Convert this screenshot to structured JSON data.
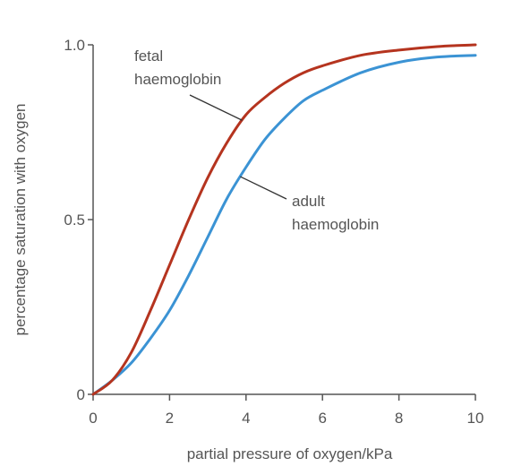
{
  "chart_data": {
    "type": "line",
    "title": "",
    "xlabel": "partial pressure of oxygen/kPa",
    "ylabel": "percentage saturation with oxygen",
    "xlim": [
      0,
      10
    ],
    "ylim": [
      0,
      1.0
    ],
    "x_ticks": [
      "0",
      "2",
      "4",
      "6",
      "8",
      "10"
    ],
    "y_ticks": [
      "0",
      "0.5",
      "1.0"
    ],
    "grid": false,
    "legend": "none",
    "series": [
      {
        "name": "fetal haemoglobin",
        "color": "#b5341f",
        "x": [
          0,
          0.5,
          1,
          1.5,
          2,
          2.5,
          3,
          3.5,
          4,
          4.5,
          5,
          5.5,
          6,
          7,
          8,
          9,
          10
        ],
        "y": [
          0,
          0.04,
          0.12,
          0.24,
          0.37,
          0.5,
          0.62,
          0.72,
          0.8,
          0.85,
          0.89,
          0.92,
          0.94,
          0.97,
          0.985,
          0.995,
          1.0
        ]
      },
      {
        "name": "adult haemoglobin",
        "color": "#3b93d4",
        "x": [
          0,
          0.5,
          1,
          1.5,
          2,
          2.5,
          3,
          3.5,
          4,
          4.5,
          5,
          5.5,
          6,
          7,
          8,
          9,
          10
        ],
        "y": [
          0,
          0.04,
          0.09,
          0.16,
          0.24,
          0.34,
          0.45,
          0.56,
          0.65,
          0.73,
          0.79,
          0.84,
          0.87,
          0.92,
          0.95,
          0.965,
          0.97
        ]
      }
    ],
    "annotations": [
      {
        "lines": [
          "fetal",
          "haemoglobin"
        ],
        "series": 0,
        "at_x": 3.9
      },
      {
        "lines": [
          "adult",
          "haemoglobin"
        ],
        "series": 1,
        "at_x": 3.85
      }
    ]
  }
}
